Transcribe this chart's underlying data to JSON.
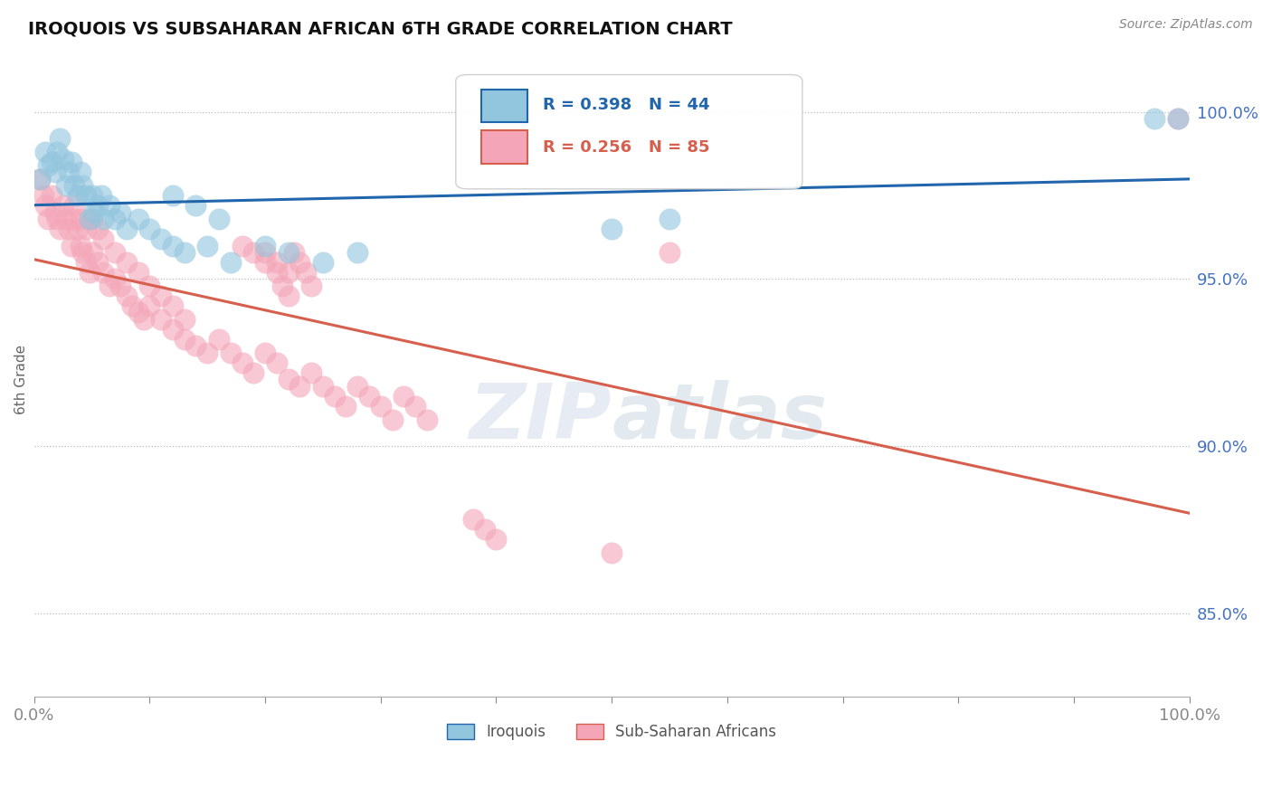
{
  "title": "IROQUOIS VS SUBSAHARAN AFRICAN 6TH GRADE CORRELATION CHART",
  "source_text": "Source: ZipAtlas.com",
  "ylabel": "6th Grade",
  "ytick_labels": [
    "100.0%",
    "95.0%",
    "90.0%",
    "85.0%"
  ],
  "ytick_values": [
    1.0,
    0.95,
    0.9,
    0.85
  ],
  "xrange": [
    0.0,
    1.0
  ],
  "yrange": [
    0.825,
    1.015
  ],
  "legend_blue_r": "R = 0.398",
  "legend_blue_n": "N = 44",
  "legend_pink_r": "R = 0.256",
  "legend_pink_n": "N = 85",
  "legend_label_blue": "Iroquois",
  "legend_label_pink": "Sub-Saharan Africans",
  "blue_color": "#92c5de",
  "pink_color": "#f4a6b8",
  "trendline_blue_color": "#2166ac",
  "trendline_pink_color": "#d6604d",
  "background_color": "#ffffff",
  "blue_x": [
    0.005,
    0.01,
    0.012,
    0.015,
    0.018,
    0.02,
    0.022,
    0.025,
    0.028,
    0.03,
    0.032,
    0.035,
    0.038,
    0.04,
    0.042,
    0.045,
    0.048,
    0.05,
    0.052,
    0.055,
    0.058,
    0.06,
    0.065,
    0.07,
    0.075,
    0.08,
    0.09,
    0.1,
    0.11,
    0.12,
    0.13,
    0.15,
    0.17,
    0.2,
    0.22,
    0.25,
    0.28,
    0.12,
    0.14,
    0.16,
    0.5,
    0.55,
    0.97,
    0.99
  ],
  "blue_y": [
    0.98,
    0.988,
    0.984,
    0.985,
    0.982,
    0.988,
    0.992,
    0.986,
    0.978,
    0.982,
    0.985,
    0.978,
    0.975,
    0.982,
    0.978,
    0.975,
    0.968,
    0.975,
    0.97,
    0.972,
    0.975,
    0.968,
    0.972,
    0.968,
    0.97,
    0.965,
    0.968,
    0.965,
    0.962,
    0.96,
    0.958,
    0.96,
    0.955,
    0.96,
    0.958,
    0.955,
    0.958,
    0.975,
    0.972,
    0.968,
    0.965,
    0.968,
    0.998,
    0.998
  ],
  "pink_x": [
    0.005,
    0.008,
    0.01,
    0.012,
    0.015,
    0.018,
    0.02,
    0.022,
    0.025,
    0.028,
    0.03,
    0.032,
    0.035,
    0.038,
    0.04,
    0.042,
    0.045,
    0.048,
    0.05,
    0.055,
    0.06,
    0.065,
    0.07,
    0.075,
    0.08,
    0.085,
    0.09,
    0.095,
    0.1,
    0.11,
    0.12,
    0.13,
    0.14,
    0.15,
    0.16,
    0.17,
    0.18,
    0.19,
    0.2,
    0.21,
    0.22,
    0.23,
    0.24,
    0.25,
    0.26,
    0.27,
    0.28,
    0.29,
    0.3,
    0.31,
    0.32,
    0.33,
    0.34,
    0.035,
    0.04,
    0.045,
    0.05,
    0.055,
    0.06,
    0.07,
    0.08,
    0.09,
    0.1,
    0.11,
    0.12,
    0.13,
    0.2,
    0.21,
    0.22,
    0.55,
    0.18,
    0.19,
    0.2,
    0.21,
    0.215,
    0.22,
    0.225,
    0.23,
    0.235,
    0.24,
    0.38,
    0.39,
    0.4,
    0.5,
    0.99
  ],
  "pink_y": [
    0.98,
    0.975,
    0.972,
    0.968,
    0.975,
    0.97,
    0.968,
    0.965,
    0.972,
    0.968,
    0.965,
    0.96,
    0.968,
    0.965,
    0.96,
    0.958,
    0.955,
    0.952,
    0.958,
    0.955,
    0.952,
    0.948,
    0.95,
    0.948,
    0.945,
    0.942,
    0.94,
    0.938,
    0.942,
    0.938,
    0.935,
    0.932,
    0.93,
    0.928,
    0.932,
    0.928,
    0.925,
    0.922,
    0.928,
    0.925,
    0.92,
    0.918,
    0.922,
    0.918,
    0.915,
    0.912,
    0.918,
    0.915,
    0.912,
    0.908,
    0.915,
    0.912,
    0.908,
    0.972,
    0.968,
    0.965,
    0.968,
    0.965,
    0.962,
    0.958,
    0.955,
    0.952,
    0.948,
    0.945,
    0.942,
    0.938,
    0.958,
    0.955,
    0.952,
    0.958,
    0.96,
    0.958,
    0.955,
    0.952,
    0.948,
    0.945,
    0.958,
    0.955,
    0.952,
    0.948,
    0.878,
    0.875,
    0.872,
    0.868,
    0.998
  ]
}
